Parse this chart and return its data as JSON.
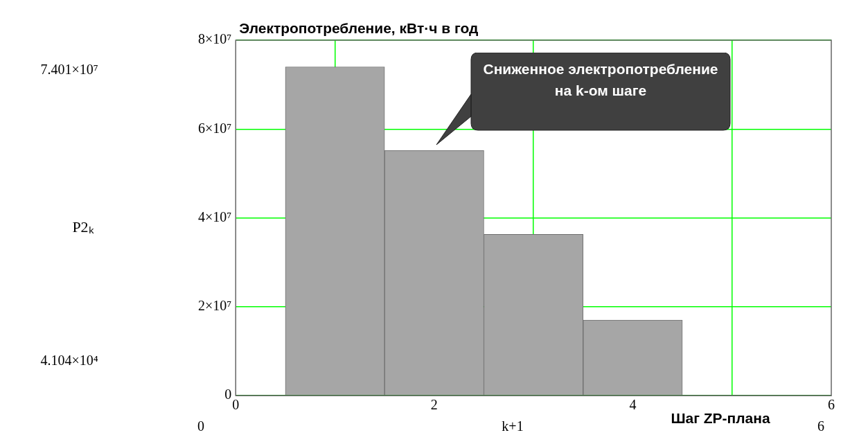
{
  "chart_data": {
    "type": "histogram",
    "title": "Электропотребление, кВт·ч в год",
    "xlabel": "Шаг ZP-плана",
    "bins": [
      0.5,
      1.5,
      2.5,
      3.5,
      4.5
    ],
    "values": [
      74000000,
      55200000,
      36300000,
      17000000
    ],
    "color": "#a6a6a6",
    "xlim": [
      0,
      6
    ],
    "xticks": [
      0,
      2,
      4,
      6
    ],
    "ylim": [
      0,
      80000000
    ],
    "yticks": [
      0,
      {
        "value": 20000000,
        "label": "2×10⁷"
      },
      {
        "value": 40000000,
        "label": "4×10⁷"
      },
      {
        "value": 60000000,
        "label": "6×10⁷"
      },
      {
        "value": 80000000,
        "label": "8×10⁷"
      }
    ],
    "grid": true,
    "legend": false,
    "annotations": [
      "7.401×10⁷",
      "4.104×10⁴",
      "k+1",
      "0",
      "6",
      "P2ₖ",
      "Сниженное электропотребление на k-ом шаге"
    ]
  }
}
